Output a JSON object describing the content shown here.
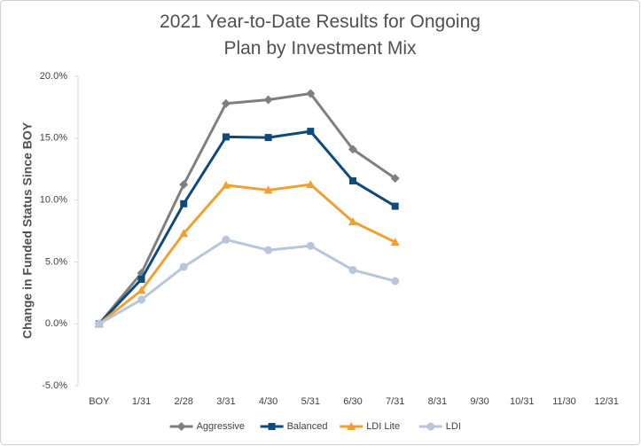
{
  "chart_data": {
    "type": "line",
    "title": "2021 Year-to-Date Results for Ongoing Plan by Investment Mix",
    "y_label": "Change in Funded Status Since BOY",
    "categories": [
      "BOY",
      "1/31",
      "2/28",
      "3/31",
      "4/30",
      "5/31",
      "6/30",
      "7/31",
      "8/31",
      "9/30",
      "10/31",
      "11/30",
      "12/31"
    ],
    "series": [
      {
        "name": "Aggressive",
        "color": "#7f7f7f",
        "marker": "diamond",
        "values": [
          0,
          4.1,
          11.25,
          17.8,
          18.1,
          18.6,
          14.1,
          11.75,
          null,
          null,
          null,
          null,
          null
        ]
      },
      {
        "name": "Balanced",
        "color": "#0e4a7a",
        "marker": "square",
        "values": [
          0,
          3.6,
          9.7,
          15.1,
          15.05,
          15.55,
          11.55,
          9.5,
          null,
          null,
          null,
          null,
          null
        ]
      },
      {
        "name": "LDI Lite",
        "color": "#f0a030",
        "marker": "triangle",
        "values": [
          0,
          2.7,
          7.3,
          11.2,
          10.8,
          11.25,
          8.25,
          6.6,
          null,
          null,
          null,
          null,
          null
        ]
      },
      {
        "name": "LDI",
        "color": "#b8c6dc",
        "marker": "circle",
        "values": [
          0,
          1.95,
          4.6,
          6.8,
          5.95,
          6.3,
          4.35,
          3.45,
          null,
          null,
          null,
          null,
          null
        ]
      }
    ],
    "ylim": [
      -5,
      20
    ],
    "yticks": [
      {
        "value": -5,
        "label": "-5.0%"
      },
      {
        "value": 0,
        "label": "0.0%"
      },
      {
        "value": 5,
        "label": "5.0%"
      },
      {
        "value": 10,
        "label": "10.0%"
      },
      {
        "value": 15,
        "label": "15.0%"
      },
      {
        "value": 20,
        "label": "20.0%"
      }
    ],
    "legend": "bottom",
    "grid": false
  }
}
